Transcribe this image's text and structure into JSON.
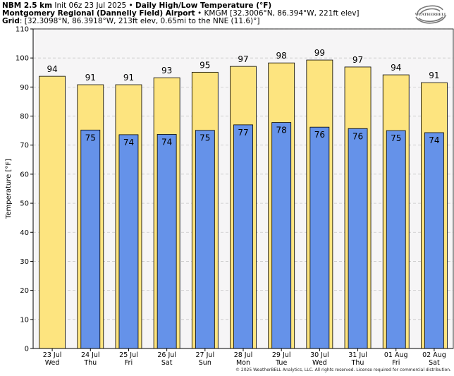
{
  "header": {
    "line1_bold": "NBM 2.5 km",
    "line1_rest": " Init 06z 23 Jul 2025 • ",
    "line1_title": "Daily High/Low Temperature (°F)",
    "line2_bold": "Montgomery Regional (Dannelly Field) Airport",
    "line2_rest": " • KMGM [32.3006°N, 86.394°W, 221ft elev]",
    "line3_bold": "Grid",
    "line3_rest": ": [32.3098°N, 86.3918°W, 213ft elev, 0.65mi to the NNE (11.6)°]"
  },
  "logo_text": "WEATHERBELL",
  "copyright": "© 2025 WeatherBELL Analytics, LLC. All rights reserved. License required for commercial distribution.",
  "colors": {
    "high": "#fde47f",
    "low": "#6592e9",
    "plot_bg": "#f6f5f6",
    "grid": "#c8c8c8"
  },
  "chart_data": {
    "type": "bar",
    "title": "Daily High/Low Temperature (°F)",
    "ylabel": "Temperature [°F]",
    "ylim": [
      0,
      110
    ],
    "yticks": [
      0,
      10,
      20,
      30,
      40,
      50,
      60,
      70,
      80,
      90,
      100,
      110
    ],
    "categories": [
      "23 Jul",
      "24 Jul",
      "25 Jul",
      "26 Jul",
      "27 Jul",
      "28 Jul",
      "29 Jul",
      "30 Jul",
      "31 Jul",
      "01 Aug",
      "02 Aug"
    ],
    "weekdays": [
      "Wed",
      "Thu",
      "Fri",
      "Sat",
      "Sun",
      "Mon",
      "Tue",
      "Wed",
      "Thu",
      "Fri",
      "Sat"
    ],
    "series": [
      {
        "values": [
          93.7,
          90.8,
          90.8,
          93.2,
          95.1,
          97.1,
          98.3,
          99.3,
          96.9,
          94.2,
          91.5
        ],
        "labels": [
          "94",
          "91",
          "91",
          "93",
          "95",
          "97",
          "98",
          "99",
          "97",
          "94",
          "91"
        ]
      },
      {
        "values": [
          null,
          75.2,
          73.6,
          73.7,
          75.1,
          77.0,
          77.8,
          76.2,
          75.7,
          75.0,
          74.3
        ],
        "labels": [
          "",
          "75",
          "74",
          "74",
          "75",
          "77",
          "78",
          "76",
          "76",
          "75",
          "74"
        ]
      }
    ],
    "grid": true
  }
}
